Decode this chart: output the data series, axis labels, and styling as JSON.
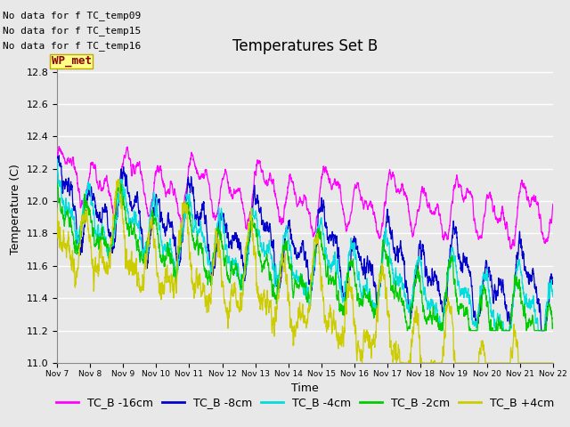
{
  "title": "Temperatures Set B",
  "xlabel": "Time",
  "ylabel": "Temperature (C)",
  "ylim": [
    11.0,
    12.9
  ],
  "yticks": [
    11.0,
    11.2,
    11.4,
    11.6,
    11.8,
    12.0,
    12.2,
    12.4,
    12.6,
    12.8
  ],
  "series": [
    {
      "label": "TC_B -16cm",
      "color": "#FF00FF"
    },
    {
      "label": "TC_B -8cm",
      "color": "#0000CC"
    },
    {
      "label": "TC_B -4cm",
      "color": "#00DDDD"
    },
    {
      "label": "TC_B -2cm",
      "color": "#00CC00"
    },
    {
      "label": "TC_B +4cm",
      "color": "#CCCC00"
    }
  ],
  "xtick_labels": [
    "Nov 7",
    "Nov 8",
    "Nov 9",
    "Nov 10",
    "Nov 11",
    "Nov 12",
    "Nov 13",
    "Nov 14",
    "Nov 15",
    "Nov 16",
    "Nov 17",
    "Nov 18",
    "Nov 19",
    "Nov 20",
    "Nov 21",
    "Nov 22"
  ],
  "annotations": [
    "No data for f TC_temp09",
    "No data for f TC_temp15",
    "No data for f TC_temp16"
  ],
  "wp_met_label": "WP_met",
  "plot_bg_color": "#E8E8E8",
  "grid_color": "#FFFFFF",
  "title_fontsize": 12,
  "axis_fontsize": 9,
  "tick_fontsize": 8,
  "legend_fontsize": 9,
  "annotation_fontsize": 8
}
